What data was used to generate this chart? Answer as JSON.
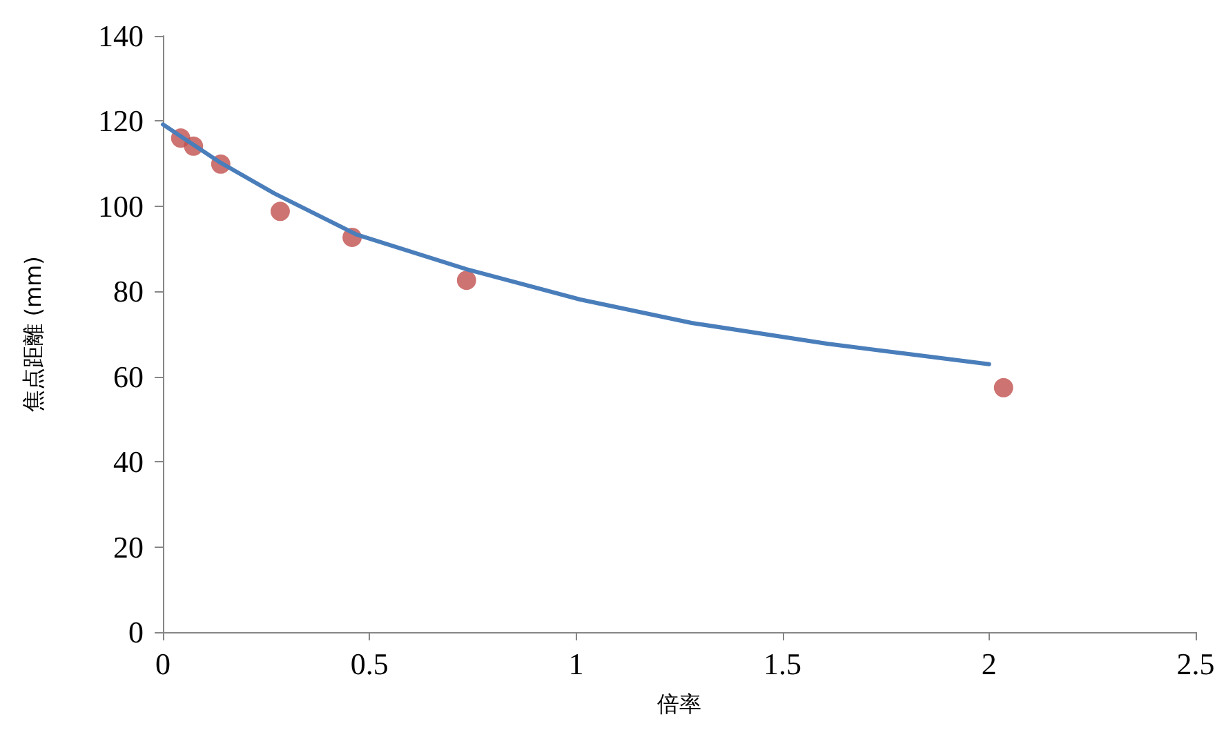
{
  "chart_data": {
    "type": "scatter",
    "xlabel": "倍率",
    "ylabel": "焦点距離 (mm)",
    "xlim": [
      0,
      2.5
    ],
    "xticks": [
      0,
      0.5,
      1,
      1.5,
      2,
      2.5
    ],
    "ylim": [
      0,
      140
    ],
    "yticks": [
      0,
      20,
      40,
      60,
      80,
      100,
      120,
      140
    ],
    "grid": false,
    "series": [
      {
        "type": "line",
        "color": "#4a7ebb",
        "marker": "none",
        "line_style": "solid",
        "x": [
          0,
          0.14,
          0.27,
          0.47,
          0.735,
          1.01,
          1.28,
          1.61,
          2.0
        ],
        "values": [
          119.2,
          110.2,
          103,
          93.3,
          85.2,
          78.1,
          72.6,
          67.7,
          62.9
        ]
      },
      {
        "color": "#c0504d",
        "marker": "circle",
        "x": [
          0.043,
          0.074,
          0.14,
          0.284,
          0.458,
          0.735,
          2.035
        ],
        "values": [
          116,
          114.1,
          109.9,
          98.8,
          92.7,
          82.6,
          57.4
        ]
      }
    ]
  }
}
